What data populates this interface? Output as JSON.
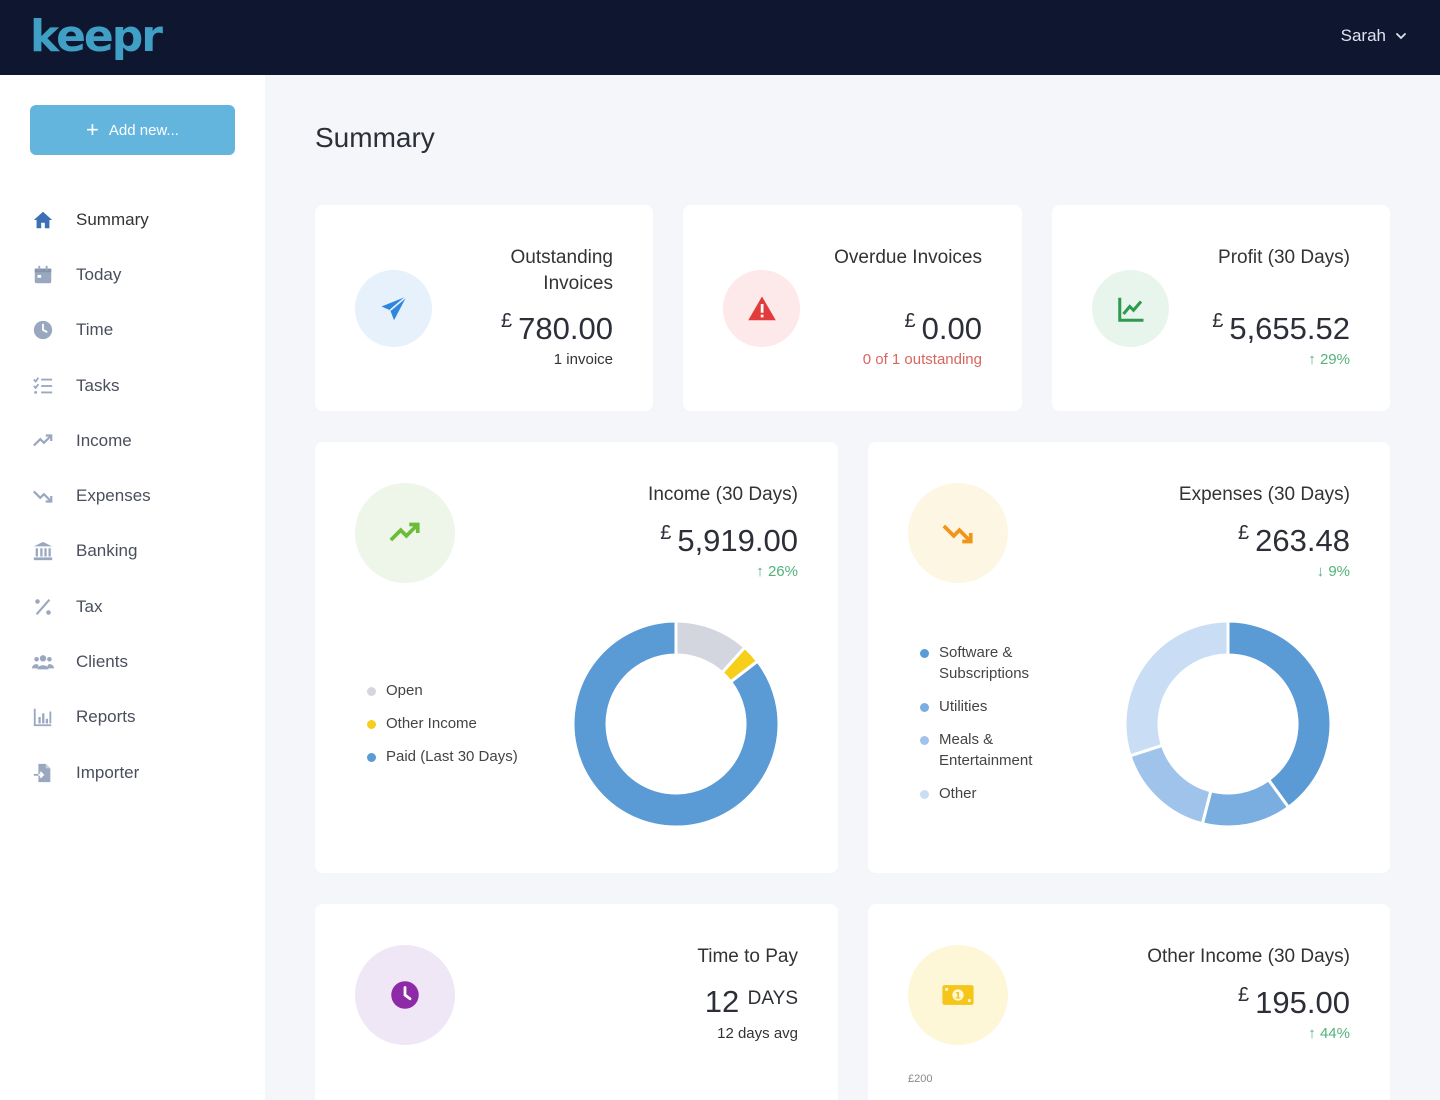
{
  "header": {
    "logo": "keepr",
    "user_name": "Sarah"
  },
  "sidebar": {
    "add_label": "Add new...",
    "items": [
      {
        "label": "Summary",
        "icon": "home-icon"
      },
      {
        "label": "Today",
        "icon": "calendar-icon"
      },
      {
        "label": "Time",
        "icon": "clock-icon"
      },
      {
        "label": "Tasks",
        "icon": "tasks-icon"
      },
      {
        "label": "Income",
        "icon": "trend-up-icon"
      },
      {
        "label": "Expenses",
        "icon": "trend-down-icon"
      },
      {
        "label": "Banking",
        "icon": "bank-icon"
      },
      {
        "label": "Tax",
        "icon": "percent-icon"
      },
      {
        "label": "Clients",
        "icon": "users-icon"
      },
      {
        "label": "Reports",
        "icon": "bar-chart-icon"
      },
      {
        "label": "Importer",
        "icon": "import-icon"
      }
    ]
  },
  "page": {
    "title": "Summary"
  },
  "cards": {
    "outstanding": {
      "title_line1": "Outstanding",
      "title_line2": "Invoices",
      "currency": "£",
      "amount": "780.00",
      "sub": "1 invoice",
      "icon": "paper-plane-icon"
    },
    "overdue": {
      "title": "Overdue Invoices",
      "currency": "£",
      "amount": "0.00",
      "sub": "0 of 1 outstanding",
      "icon": "warning-icon"
    },
    "profit": {
      "title": "Profit (30 Days)",
      "currency": "£",
      "amount": "5,655.52",
      "change": "29%",
      "icon": "line-chart-icon"
    },
    "income": {
      "title": "Income (30 Days)",
      "currency": "£",
      "amount": "5,919.00",
      "change": "26%",
      "icon": "trend-up-icon"
    },
    "expenses": {
      "title": "Expenses (30 Days)",
      "currency": "£",
      "amount": "263.48",
      "change": "9%",
      "icon": "trend-down-icon"
    },
    "time_to_pay": {
      "title": "Time to Pay",
      "value": "12",
      "unit": "DAYS",
      "sub": "12 days avg",
      "icon": "clock-icon"
    },
    "other_income": {
      "title": "Other Income (30 Days)",
      "currency": "£",
      "amount": "195.00",
      "change": "44%",
      "icon": "cash-icon",
      "axis_tick": "£200"
    }
  },
  "colors": {
    "accent": "#63b5de",
    "topbar": "#0f1630",
    "income_blue": "#5b9bd5",
    "open_grey": "#d3d6de",
    "other_yellow": "#f6cf1a"
  },
  "chart_data": [
    {
      "type": "pie",
      "name": "income-breakdown",
      "categories": [
        "Open",
        "Other Income",
        "Paid (Last 30 Days)"
      ],
      "values": [
        780,
        195,
        5724
      ],
      "colors": [
        "#d3d6de",
        "#f6cf1a",
        "#5b9bd5"
      ]
    },
    {
      "type": "pie",
      "name": "expenses-breakdown",
      "categories": [
        "Software & Subscriptions",
        "Utilities",
        "Meals & Entertainment",
        "Other"
      ],
      "values": [
        40,
        14,
        16,
        30
      ],
      "colors": [
        "#5b9bd5",
        "#7aaee0",
        "#9fc3eb",
        "#c9ddf4"
      ]
    }
  ]
}
